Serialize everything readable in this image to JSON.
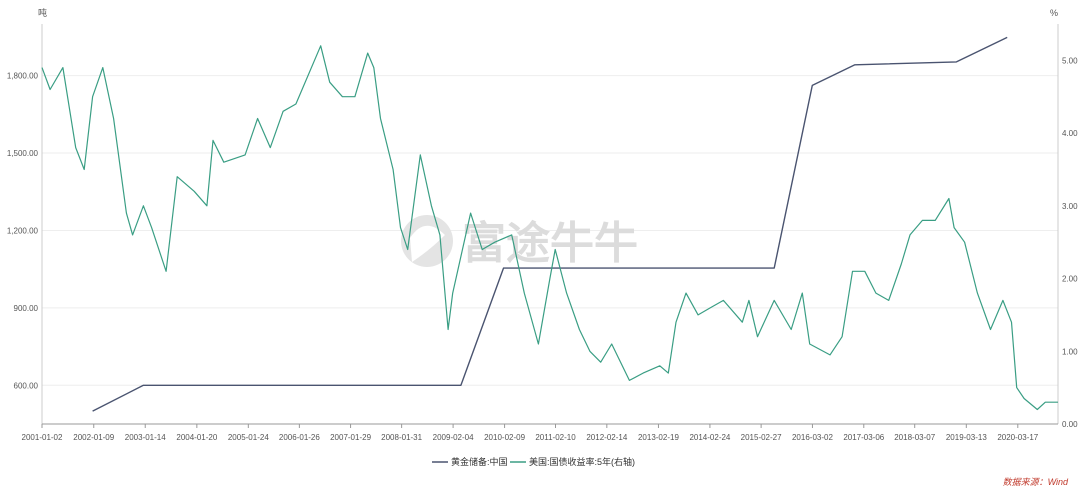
{
  "chart_data": {
    "type": "line",
    "title": "",
    "left_axis_unit": "吨",
    "right_axis_unit": "%",
    "left_ylim": [
      450,
      2000
    ],
    "right_ylim": [
      0,
      5.5
    ],
    "left_ticks": [
      "600.00",
      "900.00",
      "1,200.00",
      "1,500.00",
      "1,800.00"
    ],
    "left_tick_values": [
      600,
      900,
      1200,
      1500,
      1800
    ],
    "right_ticks": [
      "0.00",
      "1.00",
      "2.00",
      "3.00",
      "4.00",
      "5.00"
    ],
    "right_tick_values": [
      0,
      1,
      2,
      3,
      4,
      5
    ],
    "x_ticks": [
      "2001-01-02",
      "2002-01-09",
      "2003-01-14",
      "2004-01-20",
      "2005-01-24",
      "2006-01-26",
      "2007-01-29",
      "2008-01-31",
      "2009-02-04",
      "2010-02-09",
      "2011-02-10",
      "2012-02-14",
      "2013-02-19",
      "2014-02-24",
      "2015-02-27",
      "2016-03-02",
      "2017-03-06",
      "2018-03-07",
      "2019-03-13",
      "2020-03-17"
    ],
    "x_range": [
      "2001-01-02",
      "2020-12-31"
    ],
    "grid": true,
    "legend_position": "bottom-center",
    "series": [
      {
        "name": "黄金储备:中国",
        "axis": "left",
        "color": "#4a5470",
        "points": [
          [
            "2002-01-01",
            500
          ],
          [
            "2003-01-01",
            600
          ],
          [
            "2009-04-01",
            600
          ],
          [
            "2010-02-01",
            1054
          ],
          [
            "2015-06-01",
            1054
          ],
          [
            "2016-03-01",
            1762
          ],
          [
            "2017-01-01",
            1842
          ],
          [
            "2019-01-01",
            1853
          ],
          [
            "2020-01-01",
            1948
          ]
        ]
      },
      {
        "name": "美国:国债收益率:5年(右轴)",
        "axis": "right",
        "color": "#3a9e84",
        "points": [
          [
            "2001-01-02",
            4.9
          ],
          [
            "2001-03-01",
            4.6
          ],
          [
            "2001-06-01",
            4.9
          ],
          [
            "2001-09-01",
            3.8
          ],
          [
            "2001-11-01",
            3.5
          ],
          [
            "2002-01-01",
            4.5
          ],
          [
            "2002-03-15",
            4.9
          ],
          [
            "2002-06-01",
            4.2
          ],
          [
            "2002-09-01",
            2.9
          ],
          [
            "2002-10-15",
            2.6
          ],
          [
            "2003-01-01",
            3.0
          ],
          [
            "2003-03-01",
            2.7
          ],
          [
            "2003-06-13",
            2.1
          ],
          [
            "2003-09-01",
            3.4
          ],
          [
            "2004-01-01",
            3.2
          ],
          [
            "2004-04-01",
            3.0
          ],
          [
            "2004-05-15",
            3.9
          ],
          [
            "2004-08-01",
            3.6
          ],
          [
            "2005-01-01",
            3.7
          ],
          [
            "2005-04-01",
            4.2
          ],
          [
            "2005-07-01",
            3.8
          ],
          [
            "2005-10-01",
            4.3
          ],
          [
            "2006-01-01",
            4.4
          ],
          [
            "2006-06-28",
            5.2
          ],
          [
            "2006-09-01",
            4.7
          ],
          [
            "2006-12-01",
            4.5
          ],
          [
            "2007-03-01",
            4.5
          ],
          [
            "2007-06-01",
            5.1
          ],
          [
            "2007-07-15",
            4.9
          ],
          [
            "2007-09-01",
            4.2
          ],
          [
            "2007-12-01",
            3.5
          ],
          [
            "2008-01-23",
            2.7
          ],
          [
            "2008-03-15",
            2.4
          ],
          [
            "2008-06-13",
            3.7
          ],
          [
            "2008-09-01",
            3.0
          ],
          [
            "2008-11-01",
            2.6
          ],
          [
            "2008-12-30",
            1.3
          ],
          [
            "2009-02-01",
            1.8
          ],
          [
            "2009-06-10",
            2.9
          ],
          [
            "2009-09-01",
            2.4
          ],
          [
            "2009-12-01",
            2.5
          ],
          [
            "2010-04-01",
            2.6
          ],
          [
            "2010-07-01",
            1.8
          ],
          [
            "2010-10-10",
            1.1
          ],
          [
            "2011-01-01",
            2.0
          ],
          [
            "2011-02-08",
            2.4
          ],
          [
            "2011-05-01",
            1.8
          ],
          [
            "2011-08-01",
            1.3
          ],
          [
            "2011-10-15",
            1.0
          ],
          [
            "2012-01-01",
            0.85
          ],
          [
            "2012-03-20",
            1.1
          ],
          [
            "2012-07-25",
            0.6
          ],
          [
            "2012-11-01",
            0.7
          ],
          [
            "2013-03-01",
            0.8
          ],
          [
            "2013-05-01",
            0.7
          ],
          [
            "2013-06-25",
            1.4
          ],
          [
            "2013-09-05",
            1.8
          ],
          [
            "2013-12-01",
            1.5
          ],
          [
            "2014-03-01",
            1.6
          ],
          [
            "2014-06-01",
            1.7
          ],
          [
            "2014-10-15",
            1.4
          ],
          [
            "2014-12-01",
            1.7
          ],
          [
            "2015-02-01",
            1.2
          ],
          [
            "2015-06-01",
            1.7
          ],
          [
            "2015-10-01",
            1.3
          ],
          [
            "2015-12-20",
            1.8
          ],
          [
            "2016-02-11",
            1.1
          ],
          [
            "2016-07-06",
            0.95
          ],
          [
            "2016-10-01",
            1.2
          ],
          [
            "2016-12-15",
            2.1
          ],
          [
            "2017-03-13",
            2.1
          ],
          [
            "2017-06-01",
            1.8
          ],
          [
            "2017-09-01",
            1.7
          ],
          [
            "2017-12-01",
            2.2
          ],
          [
            "2018-02-01",
            2.6
          ],
          [
            "2018-05-01",
            2.8
          ],
          [
            "2018-08-01",
            2.8
          ],
          [
            "2018-11-08",
            3.1
          ],
          [
            "2018-12-15",
            2.7
          ],
          [
            "2019-03-01",
            2.5
          ],
          [
            "2019-06-01",
            1.8
          ],
          [
            "2019-09-03",
            1.3
          ],
          [
            "2019-12-01",
            1.7
          ],
          [
            "2020-02-01",
            1.4
          ],
          [
            "2020-03-09",
            0.5
          ],
          [
            "2020-05-01",
            0.35
          ],
          [
            "2020-08-04",
            0.2
          ],
          [
            "2020-10-01",
            0.3
          ],
          [
            "2020-12-31",
            0.3
          ]
        ]
      }
    ],
    "watermark": "富途牛牛",
    "source_text": "数据来源：Wind"
  }
}
